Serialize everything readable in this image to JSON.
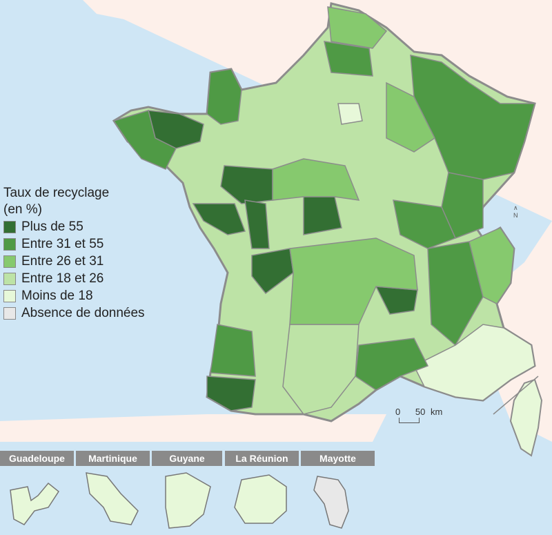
{
  "legend": {
    "title_line1": "Taux de recyclage",
    "title_line2": "(en %)",
    "items": [
      {
        "label": "Plus de 55",
        "color": "#336f33"
      },
      {
        "label": "Entre 31 et 55",
        "color": "#4f9a45"
      },
      {
        "label": "Entre 26 et 31",
        "color": "#86c96e"
      },
      {
        "label": "Entre 18 et 26",
        "color": "#bde3a6"
      },
      {
        "label": "Moins de 18",
        "color": "#e7f8d9"
      },
      {
        "label": "Absence de données",
        "color": "#e8e8e8"
      }
    ]
  },
  "scale": {
    "label_zero": "0",
    "label_dist": "50",
    "unit": "km"
  },
  "north": "N",
  "insets": [
    {
      "name": "Guadeloupe"
    },
    {
      "name": "Martinique"
    },
    {
      "name": "Guyane"
    },
    {
      "name": "La Réunion"
    },
    {
      "name": "Mayotte"
    }
  ],
  "colors": {
    "sea": "#cfe6f5",
    "land_neighbour": "#fdf0ea",
    "border": "#8c8c8c"
  }
}
